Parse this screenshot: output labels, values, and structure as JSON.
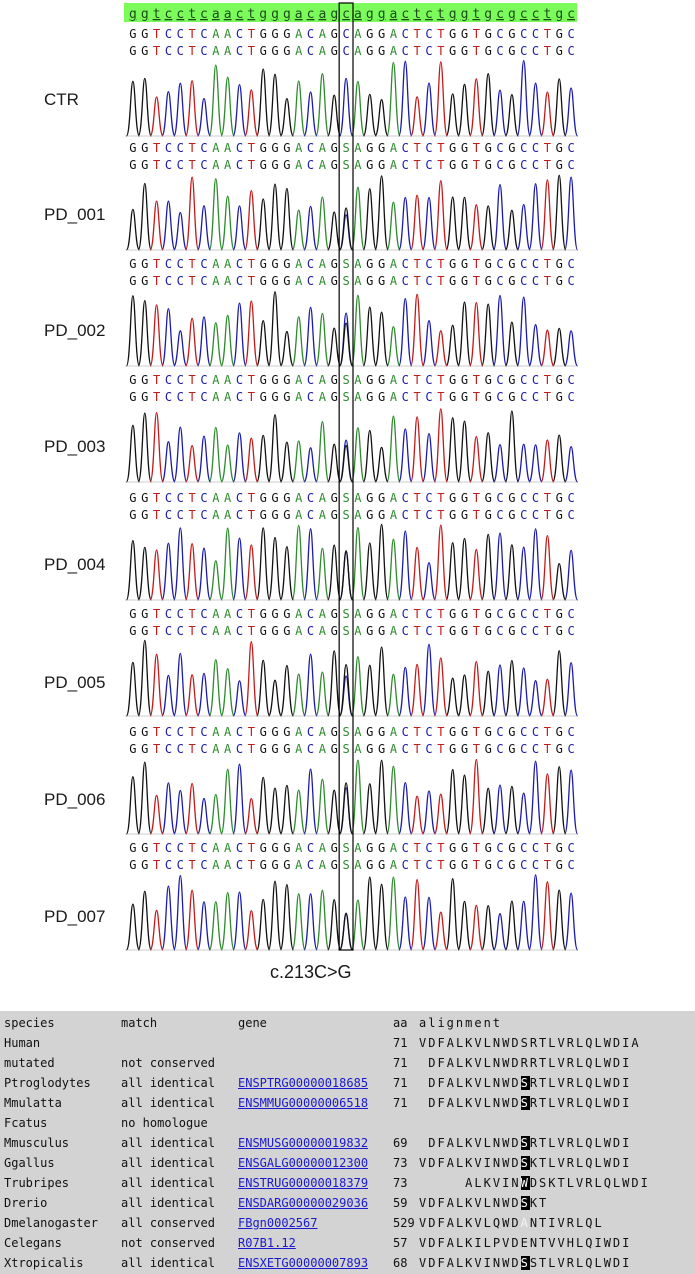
{
  "ref_sequence": "ggtcctcaactgggacagcaggactctggtgcgcctgc",
  "traces": [
    {
      "label": "CTR",
      "top_seq": "GGTCCTCAACTGGGACAGCAGGACTCTGGTGCGCCTGC",
      "bottom_seq": "GGTCCTCAACTGGGACAGCAGGACTCTGGTGCGCCTGC"
    },
    {
      "label": "PD_001",
      "top_seq": "GGTCCTCAACTGGGACAGSAGGACTCTGGTGCGCCTGC",
      "bottom_seq": "GGTCCTCAACTGGGACAGSAGGACTCTGGTGCGCCTGC"
    },
    {
      "label": "PD_002",
      "top_seq": "GGTCCTCAACTGGGACAGSAGGACTCTGGTGCGCCTGC",
      "bottom_seq": "GGTCCTCAACTGGGACAGSAGGACTCTGGTGCGCCTGC"
    },
    {
      "label": "PD_003",
      "top_seq": "GGTCCTCAACTGGGACAGSAGGACTCTGGTGCGCCTGC",
      "bottom_seq": "GGTCCTCAACTGGGACAGSAGGACTCTGGTGCGCCTGC"
    },
    {
      "label": "PD_004",
      "top_seq": "GGTCCTCAACTGGGACAGSAGGACTCTGGTGCGCCTGC",
      "bottom_seq": "GGTCCTCAACTGGGACAGSAGGACTCTGGTGCGCCTGC"
    },
    {
      "label": "PD_005",
      "top_seq": "GGTCCTCAACTGGGACAGSAGGACTCTGGTGCGCCTGC",
      "bottom_seq": "GGTCCTCAACTGGGACAGSAGGACTCTGGTGCGCCTGC"
    },
    {
      "label": "PD_006",
      "top_seq": "GGTCCTCAACTGGGACAGSAGGACTCTGGTGCGCCTGC",
      "bottom_seq": "GGTCCTCAACTGGGACAGSAGGACTCTGGTGCGCCTGC"
    },
    {
      "label": "PD_007",
      "top_seq": "GGTCCTCAACTGGGACAGSAGGACTCTGGTGCGCCTGC",
      "bottom_seq": "GGTCCTCAACTGGGACAGSAGGACTCTGGTGCGCCTGC"
    }
  ],
  "mutation_label": "c.213C>G",
  "base_colors": {
    "A": "#2e8b2e",
    "C": "#1c1ca8",
    "G": "#111111",
    "T": "#c21b1b",
    "S": "#2e8b2e"
  },
  "ref_bar_color": "#7cfc5a",
  "alignment": {
    "headers": {
      "species": "species",
      "match": "match",
      "gene": "gene",
      "aa": "aa",
      "alignment": "alignment"
    },
    "rows": [
      {
        "species": "Human",
        "match": "",
        "gene": "",
        "aa": "71",
        "seq": "VDFALKVLNWDSRTLVRLQLWDIA",
        "hi": -1
      },
      {
        "species": "mutated",
        "match": "not conserved",
        "gene": "",
        "aa": "71",
        "seq": " DFALKVLNWDRRTLVRLQLWDI",
        "hi": -1
      },
      {
        "species": "Ptroglodytes",
        "match": "all identical",
        "gene": "ENSPTRG00000018685",
        "aa": "71",
        "seq": " DFALKVLNWDSRTLVRLQLWDI",
        "hi": 11
      },
      {
        "species": "Mmulatta",
        "match": "all identical",
        "gene": "ENSMMUG00000006518",
        "aa": "71",
        "seq": " DFALKVLNWDSRTLVRLQLWDI",
        "hi": 11
      },
      {
        "species": "Fcatus",
        "match": "no homologue",
        "gene": "",
        "aa": "",
        "seq": "",
        "hi": -1
      },
      {
        "species": "Mmusculus",
        "match": "all identical",
        "gene": "ENSMUSG00000019832",
        "aa": "69",
        "seq": " DFALKVLNWDSRTLVRLQLWDI",
        "hi": 11
      },
      {
        "species": "Ggallus",
        "match": "all identical",
        "gene": "ENSGALG00000012300",
        "aa": "73",
        "seq": "VDFALKVINWDSKTLVRLQLWDI",
        "hi": 11
      },
      {
        "species": "Trubripes",
        "match": "all identical",
        "gene": "ENSTRUG00000018379",
        "aa": "73",
        "seq": "     ALKVINWDSKTLVRLQLWDI",
        "hi": 11
      },
      {
        "species": "Drerio",
        "match": "all identical",
        "gene": "ENSDARG00000029036",
        "aa": "59",
        "seq": "VDFALKVLNWDSKT",
        "hi": 11
      },
      {
        "species": "Dmelanogaster",
        "match": "all conserved",
        "gene": "FBgn0002567",
        "aa": "529",
        "seq": "VDFALKVLQWDANTIVRLQL",
        "hi": 11,
        "faint": true
      },
      {
        "species": "Celegans",
        "match": "not conserved",
        "gene": "R07B1.12",
        "aa": "57",
        "seq": "VDFALKILPVDENTVVHLQIWDI",
        "hi": -1
      },
      {
        "species": "Xtropicalis",
        "match": "all identical",
        "gene": "ENSXETG00000007893",
        "aa": "68",
        "seq": "VDFALKVINWDSSTLVRLQLWDI",
        "hi": 11
      }
    ]
  }
}
